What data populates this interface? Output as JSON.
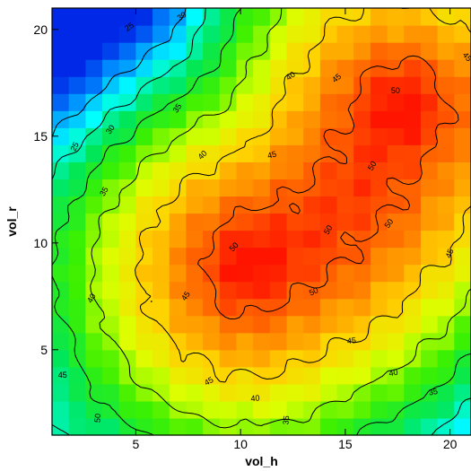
{
  "chart_data": {
    "type": "heatmap",
    "subtype": "filled contour heatmap with labeled isolines",
    "xlabel": "vol_h",
    "ylabel": "vol_r",
    "xlim": [
      1,
      21
    ],
    "ylim": [
      1,
      21
    ],
    "x_ticks": [
      5,
      10,
      15,
      20
    ],
    "y_ticks": [
      5,
      10,
      15,
      20
    ],
    "x_tick_labels": [
      "5",
      "10",
      "15",
      "20"
    ],
    "y_tick_labels": [
      "5",
      "10",
      "15",
      "20"
    ],
    "colormap": "jet-like (blue low, red high)",
    "value_range": [
      18,
      53
    ],
    "grid": false,
    "legend": "none",
    "contour_levels": [
      25,
      30,
      35,
      40,
      45,
      50
    ],
    "peaks": [
      {
        "x": 10.5,
        "y": 9.0,
        "value": 53
      },
      {
        "x": 17.8,
        "y": 16.5,
        "value": 52
      }
    ],
    "ridge_path": [
      [
        10.5,
        9.0
      ],
      [
        13.5,
        10.5
      ],
      [
        15.5,
        12.5
      ],
      [
        17.5,
        16.0
      ]
    ],
    "low_corner": {
      "x": 1,
      "y": 21,
      "value": 18
    },
    "contour_labels": [
      {
        "text": "25",
        "x": 4.7,
        "y": 20.1,
        "angle": -35
      },
      {
        "text": "30",
        "x": 7.2,
        "y": 20.6,
        "angle": -35
      },
      {
        "text": "45",
        "x": 20.8,
        "y": 18.7,
        "angle": 50
      },
      {
        "text": "40",
        "x": 12.4,
        "y": 17.8,
        "angle": -35
      },
      {
        "text": "45",
        "x": 14.6,
        "y": 17.7,
        "angle": -40
      },
      {
        "text": "50",
        "x": 17.4,
        "y": 17.1,
        "angle": 0
      },
      {
        "text": "35",
        "x": 7.0,
        "y": 16.3,
        "angle": -55
      },
      {
        "text": "30",
        "x": 3.8,
        "y": 15.3,
        "angle": -55
      },
      {
        "text": "40",
        "x": 8.2,
        "y": 14.1,
        "angle": -45
      },
      {
        "text": "45",
        "x": 11.5,
        "y": 14.1,
        "angle": -15
      },
      {
        "text": "50",
        "x": 16.3,
        "y": 13.6,
        "angle": -60
      },
      {
        "text": "25",
        "x": 2.1,
        "y": 14.5,
        "angle": -65
      },
      {
        "text": "35",
        "x": 3.5,
        "y": 12.4,
        "angle": -60
      },
      {
        "text": "50",
        "x": 14.2,
        "y": 10.6,
        "angle": -60
      },
      {
        "text": "50",
        "x": 17.1,
        "y": 10.9,
        "angle": -55
      },
      {
        "text": "50",
        "x": 9.7,
        "y": 9.8,
        "angle": -45
      },
      {
        "text": "45",
        "x": 20.0,
        "y": 9.5,
        "angle": -70
      },
      {
        "text": "50",
        "x": 13.5,
        "y": 7.7,
        "angle": -25
      },
      {
        "text": "45",
        "x": 7.4,
        "y": 7.5,
        "angle": -55
      },
      {
        "text": "40",
        "x": 2.9,
        "y": 7.4,
        "angle": -60
      },
      {
        "text": "45",
        "x": 15.3,
        "y": 5.4,
        "angle": -5
      },
      {
        "text": "40",
        "x": 17.3,
        "y": 3.9,
        "angle": -10
      },
      {
        "text": "45",
        "x": 1.5,
        "y": 3.8,
        "angle": 0
      },
      {
        "text": "45",
        "x": 8.5,
        "y": 3.5,
        "angle": -30
      },
      {
        "text": "40",
        "x": 10.7,
        "y": 2.7,
        "angle": -5
      },
      {
        "text": "35",
        "x": 19.2,
        "y": 3.0,
        "angle": -10
      },
      {
        "text": "50",
        "x": 3.2,
        "y": 1.8,
        "angle": -85
      },
      {
        "text": "35",
        "x": 12.2,
        "y": 1.7,
        "angle": -85
      }
    ]
  }
}
